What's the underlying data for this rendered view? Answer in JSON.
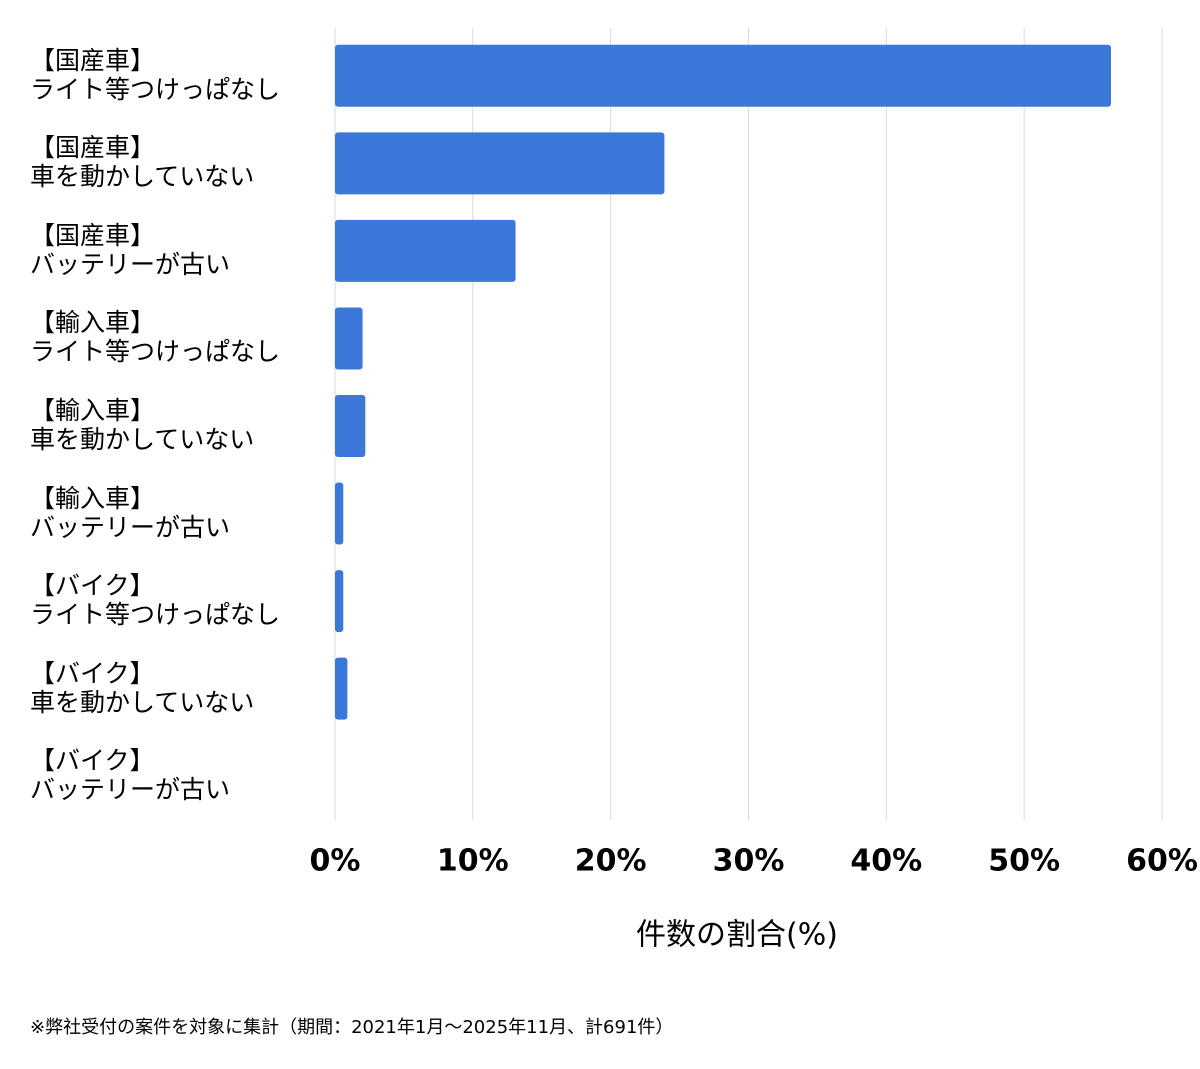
{
  "chart_data": {
    "type": "barh",
    "categories": [
      "【国産車】\nライト等つけっぱなし",
      "【国産車】\n車を動かしていない",
      "【国産車】\nバッテリーが古い",
      "【輸入車】\nライト等つけっぱなし",
      "【輸入車】\n車を動かしていない",
      "【輸入車】\nバッテリーが古い",
      "【バイク】\nライト等つけっぱなし",
      "【バイク】\n車を動かしていない",
      "【バイク】\nバッテリーが古い"
    ],
    "values": [
      56.3,
      23.9,
      13.1,
      2.0,
      2.2,
      0.6,
      0.6,
      0.9,
      0
    ],
    "color": "#3c78d8",
    "xlim": [
      0,
      60
    ],
    "xticks": [
      {
        "value": 0,
        "label": "0%"
      },
      {
        "value": 10,
        "label": "10%"
      },
      {
        "value": 20,
        "label": "20%"
      },
      {
        "value": 30,
        "label": "30%"
      },
      {
        "value": 40,
        "label": "40%"
      },
      {
        "value": 50,
        "label": "50%"
      },
      {
        "value": 60,
        "label": "60%"
      }
    ],
    "grid": true,
    "x_label": "件数の割合(%)",
    "footnote": "※弊社受付の案件を対象に集計（期間：2021年1月〜2025年11月、計691件）"
  }
}
